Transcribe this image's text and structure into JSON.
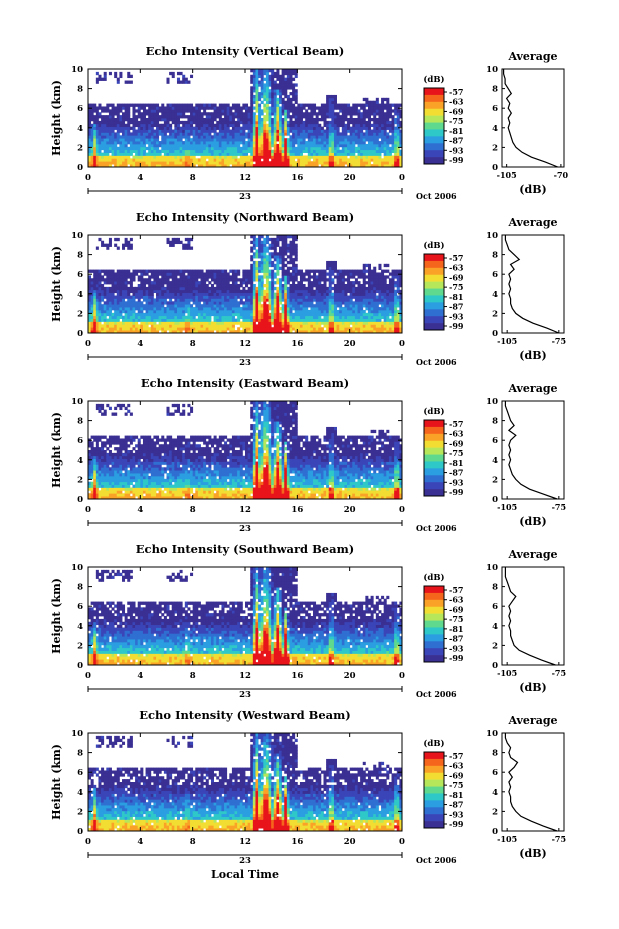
{
  "colorbar": {
    "unit": "(dB)",
    "ticks": [
      "-57",
      "-63",
      "-69",
      "-75",
      "-81",
      "-87",
      "-93",
      "-99"
    ],
    "colors": [
      "#e8141b",
      "#f5661c",
      "#f9a227",
      "#f2dd33",
      "#b6e65a",
      "#5fd98e",
      "#2fc8c8",
      "#2a9ee0",
      "#2f6fd2",
      "#3a45b8",
      "#3a2f93"
    ]
  },
  "axes": {
    "height_ylabel": "Height (km)",
    "height_ticks": [
      "0",
      "2",
      "4",
      "6",
      "8",
      "10"
    ],
    "time_ticks": [
      "0",
      "4",
      "8",
      "12",
      "16",
      "20",
      "0"
    ],
    "day_label": "23",
    "date_label": "Oct 2006",
    "time_xlabel": "Local Time",
    "avg_xlabel": "(dB)",
    "avg_ylabel_ticks": [
      "0",
      "2",
      "4",
      "6",
      "8",
      "10"
    ]
  },
  "chart_data": [
    {
      "type": "heatmap",
      "title": "Echo Intensity (Vertical Beam)",
      "xlabel": "",
      "ylabel": "Height (km)",
      "xlim": [
        0,
        24
      ],
      "ylim": [
        0,
        10
      ],
      "colorbar_label": "(dB)",
      "colorbar_range": [
        -99,
        -57
      ],
      "date": "23 Oct 2006",
      "average_profile": {
        "title": "Average",
        "xlabel": "(dB)",
        "xtick_labels": [
          "-105",
          "-70"
        ],
        "xlim": [
          -108,
          -68
        ],
        "height_km": [
          0,
          0.5,
          1,
          1.5,
          2,
          2.5,
          3,
          3.5,
          4,
          4.5,
          5,
          5.5,
          6,
          6.5,
          7,
          7.5,
          8,
          8.5,
          9,
          9.5,
          10
        ],
        "values_db": [
          -72,
          -80,
          -89,
          -95,
          -99,
          -101,
          -102,
          -103,
          -104,
          -103,
          -104,
          -102,
          -104,
          -103,
          -105,
          -102,
          -104,
          -106,
          -106,
          -107,
          -107
        ]
      }
    },
    {
      "type": "heatmap",
      "title": "Echo Intensity (Northward Beam)",
      "xlabel": "",
      "ylabel": "Height (km)",
      "xlim": [
        0,
        24
      ],
      "ylim": [
        0,
        10
      ],
      "colorbar_label": "(dB)",
      "colorbar_range": [
        -99,
        -57
      ],
      "date": "23 Oct 2006",
      "average_profile": {
        "title": "Average",
        "xlabel": "(dB)",
        "xtick_labels": [
          "-105",
          "-75"
        ],
        "xlim": [
          -108,
          -72
        ],
        "height_km": [
          0,
          0.5,
          1,
          1.5,
          2,
          2.5,
          3,
          3.5,
          4,
          4.5,
          5,
          5.5,
          6,
          6.5,
          7,
          7.5,
          8,
          8.5,
          9,
          9.5,
          10
        ],
        "values_db": [
          -75,
          -82,
          -90,
          -96,
          -100,
          -102,
          -103,
          -103,
          -104,
          -103,
          -104,
          -103,
          -104,
          -101,
          -103,
          -98,
          -101,
          -104,
          -105,
          -106,
          -106
        ]
      }
    },
    {
      "type": "heatmap",
      "title": "Echo Intensity (Eastward Beam)",
      "xlabel": "",
      "ylabel": "Height (km)",
      "xlim": [
        0,
        24
      ],
      "ylim": [
        0,
        10
      ],
      "colorbar_label": "(dB)",
      "colorbar_range": [
        -99,
        -57
      ],
      "date": "23 Oct 2006",
      "average_profile": {
        "title": "Average",
        "xlabel": "(dB)",
        "xtick_labels": [
          "-105",
          "-75"
        ],
        "xlim": [
          -108,
          -72
        ],
        "height_km": [
          0,
          0.5,
          1,
          1.5,
          2,
          2.5,
          3,
          3.5,
          4,
          4.5,
          5,
          5.5,
          6,
          6.5,
          7,
          7.5,
          8,
          8.5,
          9,
          9.5,
          10
        ],
        "values_db": [
          -76,
          -84,
          -92,
          -97,
          -100,
          -102,
          -103,
          -104,
          -103,
          -104,
          -103,
          -104,
          -103,
          -100,
          -104,
          -101,
          -103,
          -104,
          -105,
          -106,
          -106
        ]
      }
    },
    {
      "type": "heatmap",
      "title": "Echo Intensity (Southward Beam)",
      "xlabel": "",
      "ylabel": "Height (km)",
      "xlim": [
        0,
        24
      ],
      "ylim": [
        0,
        10
      ],
      "colorbar_label": "(dB)",
      "colorbar_range": [
        -99,
        -57
      ],
      "date": "23 Oct 2006",
      "average_profile": {
        "title": "Average",
        "xlabel": "(dB)",
        "xtick_labels": [
          "-105",
          "-75"
        ],
        "xlim": [
          -108,
          -72
        ],
        "height_km": [
          0,
          0.5,
          1,
          1.5,
          2,
          2.5,
          3,
          3.5,
          4,
          4.5,
          5,
          5.5,
          6,
          6.5,
          7,
          7.5,
          8,
          8.5,
          9,
          9.5,
          10
        ],
        "values_db": [
          -77,
          -85,
          -92,
          -98,
          -101,
          -102,
          -103,
          -103,
          -104,
          -103,
          -104,
          -103,
          -104,
          -102,
          -100,
          -103,
          -104,
          -105,
          -106,
          -106,
          -106
        ]
      }
    },
    {
      "type": "heatmap",
      "title": "Echo Intensity (Westward Beam)",
      "xlabel": "Local Time",
      "ylabel": "Height (km)",
      "xlim": [
        0,
        24
      ],
      "ylim": [
        0,
        10
      ],
      "colorbar_label": "(dB)",
      "colorbar_range": [
        -99,
        -57
      ],
      "date": "23 Oct 2006",
      "average_profile": {
        "title": "Average",
        "xlabel": "(dB)",
        "xtick_labels": [
          "-105",
          "-75"
        ],
        "xlim": [
          -108,
          -72
        ],
        "height_km": [
          0,
          0.5,
          1,
          1.5,
          2,
          2.5,
          3,
          3.5,
          4,
          4.5,
          5,
          5.5,
          6,
          6.5,
          7,
          7.5,
          8,
          8.5,
          9,
          9.5,
          10
        ],
        "values_db": [
          -76,
          -84,
          -91,
          -97,
          -100,
          -102,
          -103,
          -103,
          -104,
          -103,
          -104,
          -102,
          -104,
          -101,
          -99,
          -103,
          -104,
          -103,
          -105,
          -106,
          -106
        ]
      }
    }
  ]
}
